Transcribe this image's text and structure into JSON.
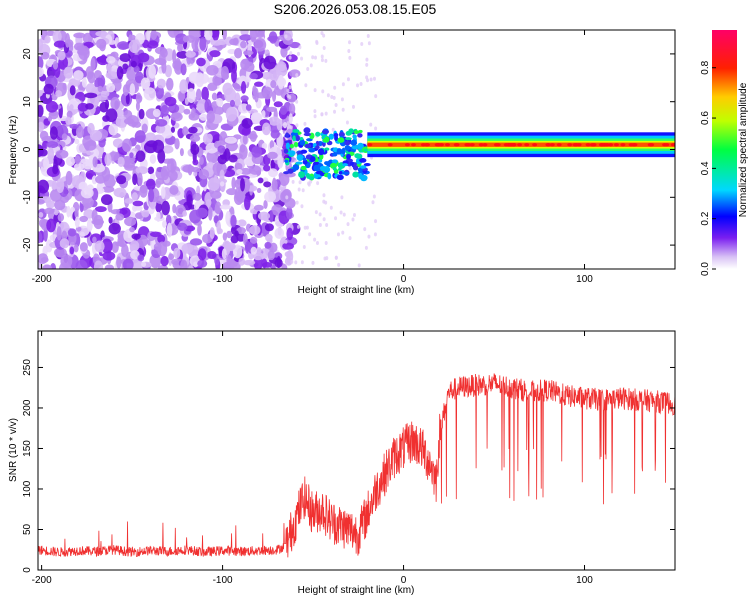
{
  "title": "S206.2026.053.08.15.E05",
  "chart_data": [
    {
      "type": "heatmap",
      "name": "spectrogram",
      "xlabel": "Height of straight line (km)",
      "ylabel": "Frequency (Hz)",
      "xlim": [
        -202,
        150
      ],
      "ylim": [
        -25,
        25
      ],
      "xticks": [
        -200,
        -100,
        0,
        100
      ],
      "xtick_labels": [
        "-200",
        "-100",
        "0",
        "100"
      ],
      "yticks": [
        -20,
        -10,
        0,
        10,
        20
      ],
      "ytick_labels": [
        "-20",
        "-10",
        "0",
        "10",
        "20"
      ],
      "colorbar": {
        "label": "Normalized spectral amplitude",
        "range": [
          0,
          0.95
        ],
        "ticks": [
          0.0,
          0.2,
          0.4,
          0.6,
          0.8
        ],
        "tick_labels": [
          "0.0",
          "0.2",
          "0.4",
          "0.6",
          "0.8"
        ]
      },
      "regions": [
        {
          "name": "broadband noise",
          "x": [
            -202,
            -65
          ],
          "y": [
            -25,
            25
          ],
          "amplitude": 0.15
        },
        {
          "name": "signal onset",
          "x": [
            -65,
            -20
          ],
          "y": [
            -6,
            4
          ],
          "amplitude": 0.35
        },
        {
          "name": "carrier line",
          "x": [
            -20,
            150
          ],
          "y": [
            0,
            2
          ],
          "amplitude": 0.9
        }
      ]
    },
    {
      "type": "line",
      "name": "snr",
      "xlabel": "Height of straight line (km)",
      "ylabel": "SNR (10 * v/v)",
      "xlim": [
        -202,
        150
      ],
      "ylim": [
        0,
        295
      ],
      "xticks": [
        -200,
        -100,
        0,
        100
      ],
      "xtick_labels": [
        "-200",
        "-100",
        "0",
        "100"
      ],
      "yticks": [
        0,
        50,
        100,
        150,
        200,
        250
      ],
      "ytick_labels": [
        "0",
        "50",
        "100",
        "150",
        "200",
        "250"
      ],
      "color": "#f03030",
      "series": [
        {
          "name": "SNR",
          "x": [
            -202,
            -190,
            -180,
            -170,
            -160,
            -150,
            -140,
            -130,
            -120,
            -110,
            -100,
            -90,
            -80,
            -70,
            -65,
            -60,
            -55,
            -50,
            -45,
            -40,
            -35,
            -30,
            -25,
            -20,
            -15,
            -10,
            -5,
            0,
            5,
            10,
            15,
            18,
            20,
            25,
            30,
            40,
            50,
            60,
            70,
            80,
            90,
            100,
            110,
            120,
            130,
            140,
            150
          ],
          "values": [
            25,
            22,
            24,
            23,
            25,
            22,
            24,
            23,
            25,
            22,
            24,
            23,
            24,
            25,
            30,
            60,
            90,
            70,
            75,
            60,
            55,
            50,
            45,
            70,
            100,
            120,
            140,
            150,
            160,
            150,
            130,
            110,
            170,
            220,
            225,
            228,
            230,
            225,
            220,
            222,
            215,
            212,
            210,
            212,
            210,
            208,
            205
          ]
        }
      ]
    }
  ]
}
